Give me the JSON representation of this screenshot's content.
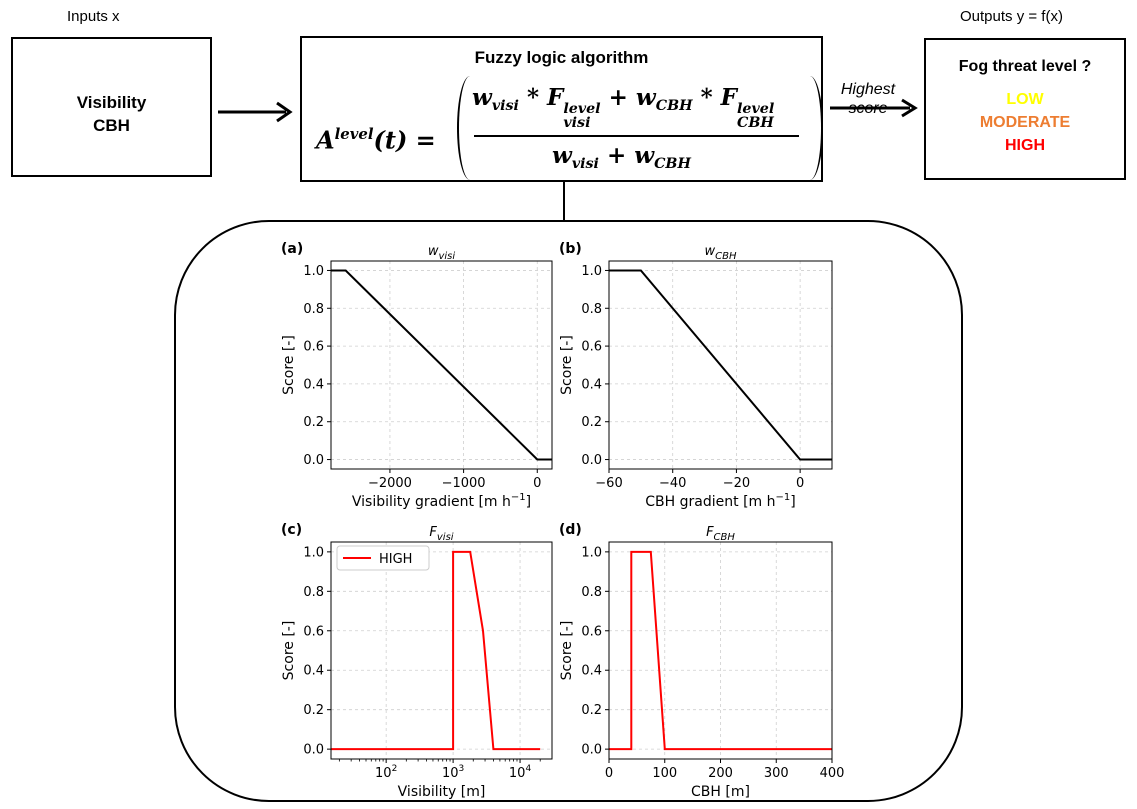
{
  "inputs_title": "Inputs x",
  "outputs_title": "Outputs y = f(x)",
  "input_box": {
    "line1": "Visibility",
    "line2": "CBH"
  },
  "algorithm_box": {
    "title": "Fuzzy logic algorithm",
    "lhs_base": "A",
    "lhs_sup": "level",
    "lhs_arg": "(t) =",
    "w": "w",
    "visi": "visi",
    "cbh": "CBH",
    "F": "F",
    "level": "level",
    "times": "*",
    "plus": "+"
  },
  "arrow_label": {
    "line1": "Highest",
    "line2": "score"
  },
  "output_box": {
    "title": "Fog threat level ?",
    "levels": [
      {
        "label": "LOW",
        "color": "#ffff00"
      },
      {
        "label": "MODERATE",
        "color": "#ed7d31"
      },
      {
        "label": "HIGH",
        "color": "#ff0000"
      }
    ]
  },
  "chart_data": [
    {
      "panel": "(a)",
      "title_base": "w",
      "title_sub": "visi",
      "type": "line",
      "xlabel": "Visibility gradient [m h",
      "xlabel_sup": "−1",
      "xlabel_end": "]",
      "ylabel": "Score [-]",
      "xlim": [
        -2800,
        200
      ],
      "ylim": [
        -0.05,
        1.05
      ],
      "xticks": [
        -2000,
        -1000,
        0
      ],
      "xtick_labels": [
        "−2000",
        "−1000",
        "0"
      ],
      "yticks": [
        0.0,
        0.2,
        0.4,
        0.6,
        0.8,
        1.0
      ],
      "ytick_labels": [
        "0.0",
        "0.2",
        "0.4",
        "0.6",
        "0.8",
        "1.0"
      ],
      "series": [
        {
          "color": "#000000",
          "x": [
            -2800,
            -2600,
            0,
            200
          ],
          "y": [
            1.0,
            1.0,
            0.0,
            0.0
          ]
        }
      ]
    },
    {
      "panel": "(b)",
      "title_base": "w",
      "title_sub": "CBH",
      "type": "line",
      "xlabel": "CBH gradient [m h",
      "xlabel_sup": "−1",
      "xlabel_end": "]",
      "ylabel": "Score [-]",
      "xlim": [
        -60,
        10
      ],
      "ylim": [
        -0.05,
        1.05
      ],
      "xticks": [
        -60,
        -40,
        -20,
        0
      ],
      "xtick_labels": [
        "−60",
        "−40",
        "−20",
        "0"
      ],
      "yticks": [
        0.0,
        0.2,
        0.4,
        0.6,
        0.8,
        1.0
      ],
      "ytick_labels": [
        "0.0",
        "0.2",
        "0.4",
        "0.6",
        "0.8",
        "1.0"
      ],
      "series": [
        {
          "color": "#000000",
          "x": [
            -60,
            -50,
            0,
            10
          ],
          "y": [
            1.0,
            1.0,
            0.0,
            0.0
          ]
        }
      ]
    },
    {
      "panel": "(c)",
      "title_base": "F",
      "title_sub": "visi",
      "type": "line",
      "xscale": "log",
      "xlabel": "Visibility [m]",
      "ylabel": "Score [-]",
      "xlim": [
        15,
        30000
      ],
      "ylim": [
        -0.05,
        1.05
      ],
      "xticks": [
        100,
        1000,
        10000
      ],
      "xtick_bases": [
        "10",
        "10",
        "10"
      ],
      "xtick_exps": [
        "2",
        "3",
        "4"
      ],
      "yticks": [
        0.0,
        0.2,
        0.4,
        0.6,
        0.8,
        1.0
      ],
      "ytick_labels": [
        "0.0",
        "0.2",
        "0.4",
        "0.6",
        "0.8",
        "1.0"
      ],
      "legend": {
        "label": "HIGH",
        "position": "top-left"
      },
      "series": [
        {
          "name": "HIGH",
          "color": "#ff0000",
          "x": [
            15,
            1000,
            1000,
            1800,
            2800,
            4000,
            20000
          ],
          "y": [
            0.0,
            0.0,
            1.0,
            1.0,
            0.6,
            0.0,
            0.0
          ]
        }
      ]
    },
    {
      "panel": "(d)",
      "title_base": "F",
      "title_sub": "CBH",
      "type": "line",
      "xlabel": "CBH [m]",
      "ylabel": "Score [-]",
      "xlim": [
        0,
        400
      ],
      "ylim": [
        -0.05,
        1.05
      ],
      "xticks": [
        0,
        100,
        200,
        300,
        400
      ],
      "xtick_labels": [
        "0",
        "100",
        "200",
        "300",
        "400"
      ],
      "yticks": [
        0.0,
        0.2,
        0.4,
        0.6,
        0.8,
        1.0
      ],
      "ytick_labels": [
        "0.0",
        "0.2",
        "0.4",
        "0.6",
        "0.8",
        "1.0"
      ],
      "series": [
        {
          "color": "#ff0000",
          "x": [
            0,
            40,
            40,
            75,
            100,
            400
          ],
          "y": [
            0.0,
            0.0,
            1.0,
            1.0,
            0.0,
            0.0
          ]
        }
      ]
    }
  ]
}
